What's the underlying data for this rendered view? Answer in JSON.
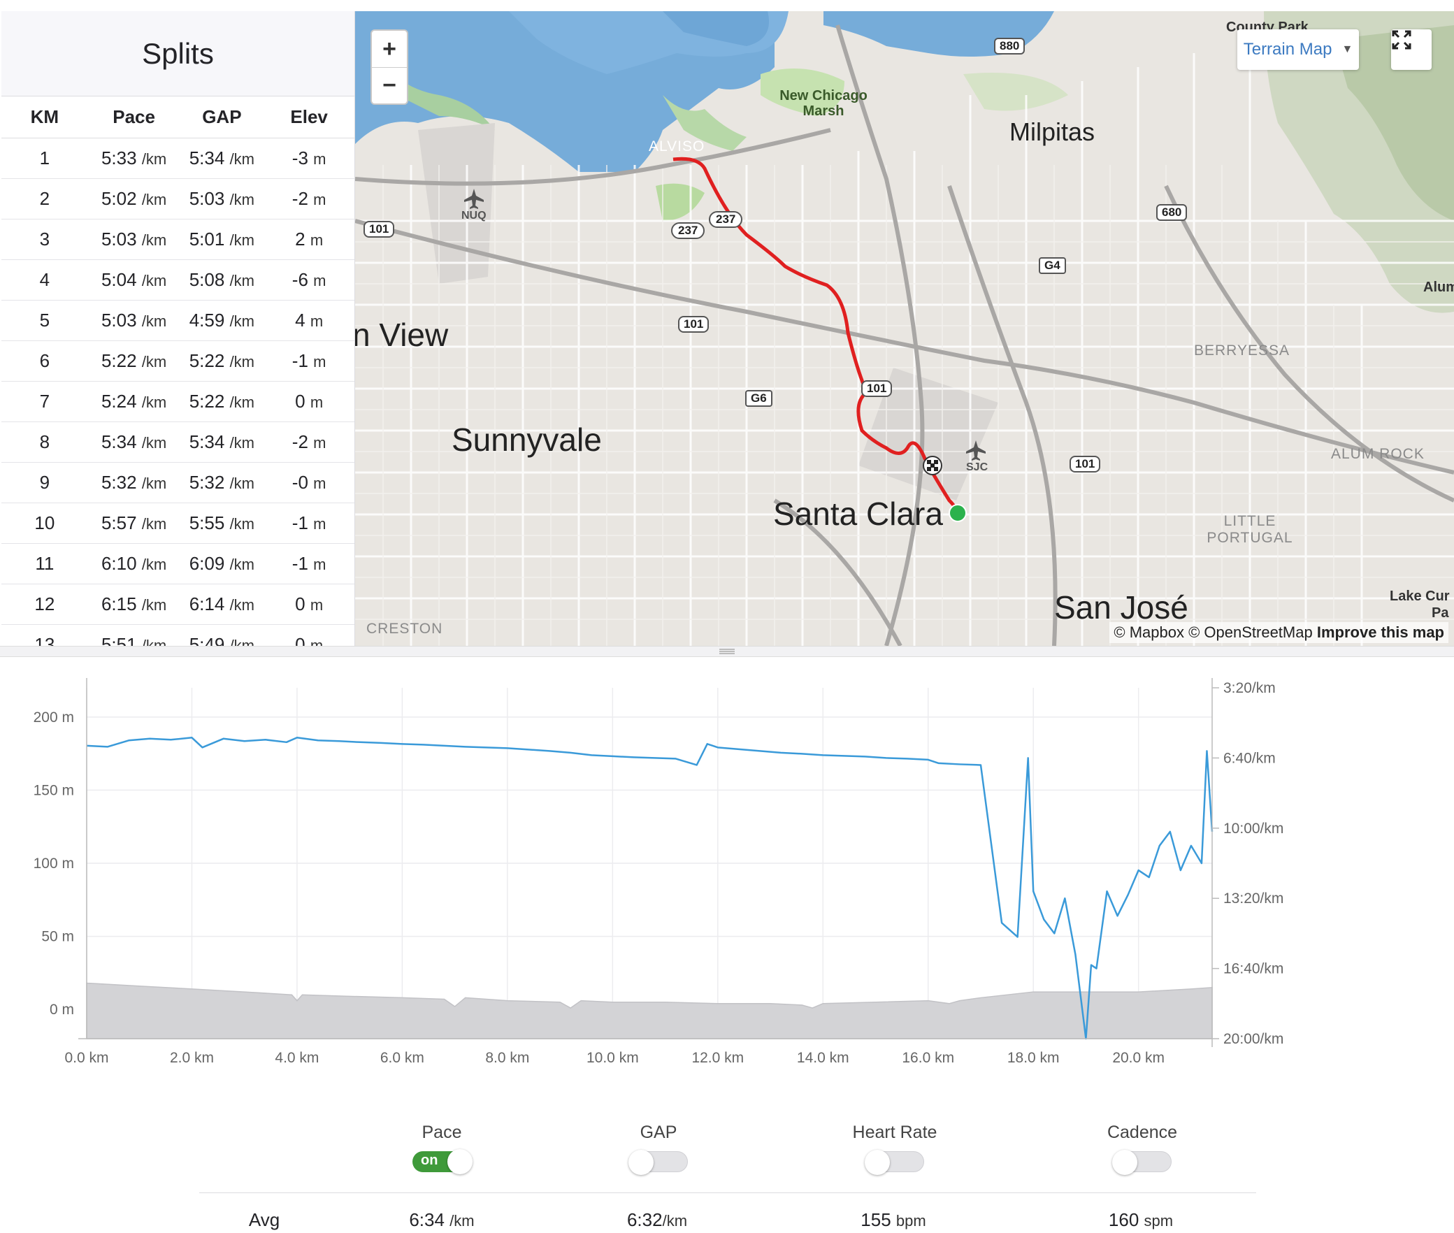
{
  "splits": {
    "title": "Splits",
    "columns": [
      "KM",
      "Pace",
      "GAP",
      "Elev"
    ],
    "rows": [
      {
        "km": "1",
        "pace": "5:33",
        "gap": "5:34",
        "elev": "-3"
      },
      {
        "km": "2",
        "pace": "5:02",
        "gap": "5:03",
        "elev": "-2"
      },
      {
        "km": "3",
        "pace": "5:03",
        "gap": "5:01",
        "elev": "2"
      },
      {
        "km": "4",
        "pace": "5:04",
        "gap": "5:08",
        "elev": "-6"
      },
      {
        "km": "5",
        "pace": "5:03",
        "gap": "4:59",
        "elev": "4"
      },
      {
        "km": "6",
        "pace": "5:22",
        "gap": "5:22",
        "elev": "-1"
      },
      {
        "km": "7",
        "pace": "5:24",
        "gap": "5:22",
        "elev": "0"
      },
      {
        "km": "8",
        "pace": "5:34",
        "gap": "5:34",
        "elev": "-2"
      },
      {
        "km": "9",
        "pace": "5:32",
        "gap": "5:32",
        "elev": "-0"
      },
      {
        "km": "10",
        "pace": "5:57",
        "gap": "5:55",
        "elev": "-1"
      },
      {
        "km": "11",
        "pace": "6:10",
        "gap": "6:09",
        "elev": "-1"
      },
      {
        "km": "12",
        "pace": "6:15",
        "gap": "6:14",
        "elev": "0"
      },
      {
        "km": "13",
        "pace": "5:51",
        "gap": "5:49",
        "elev": "0"
      }
    ],
    "pace_unit": "/km",
    "elev_unit": "m"
  },
  "map": {
    "zoom_in": "+",
    "zoom_out": "−",
    "style_button": "Terrain Map",
    "attribution_prefix": "© Mapbox © OpenStreetMap",
    "attribution_link": "Improve this map",
    "labels": {
      "milpitas": "Milpitas",
      "sunnyvale": "Sunnyvale",
      "santa_clara": "Santa Clara",
      "san_jose": "San José",
      "mountain_view": "n View",
      "alviso": "ALVISO",
      "new_chicago_marsh": "New Chicago Marsh",
      "nuq": "NUQ",
      "sjc": "SJC",
      "berryessa": "BERRYESSA",
      "alum_rock": "ALUM ROCK",
      "little_portugal": "LITTLE PORTUGAL",
      "creston": "CRESTON",
      "county_park": "County Park",
      "alum": "Alum",
      "lake_cur": "Lake Cur",
      "pa": "Pa"
    },
    "shields": [
      "880",
      "237",
      "237",
      "101",
      "101",
      "101",
      "101",
      "680",
      "G4",
      "G6"
    ],
    "route_color": "#e02020",
    "start_color": "#2bb24c"
  },
  "chart_data": {
    "type": "line",
    "x_axis": {
      "label": "",
      "ticks": [
        "0.0 km",
        "2.0 km",
        "4.0 km",
        "6.0 km",
        "8.0 km",
        "10.0 km",
        "12.0 km",
        "14.0 km",
        "16.0 km",
        "18.0 km",
        "20.0 km"
      ],
      "range": [
        0,
        21.4
      ]
    },
    "y_left": {
      "ticks": [
        "200 m",
        "150 m",
        "100 m",
        "50 m",
        "0 m"
      ],
      "range": [
        -20,
        220
      ]
    },
    "y_right": {
      "ticks": [
        "3:20/km",
        "6:40/km",
        "10:00/km",
        "13:20/km",
        "16:40/km",
        "20:00/km"
      ],
      "range_sec_per_km": [
        200,
        1200
      ]
    },
    "series": [
      {
        "name": "Pace",
        "color": "#3a9ad9",
        "x": [
          0.0,
          0.4,
          0.8,
          1.2,
          1.6,
          2.0,
          2.2,
          2.6,
          3.0,
          3.4,
          3.8,
          4.0,
          4.4,
          4.8,
          5.2,
          5.6,
          6.0,
          6.4,
          6.8,
          7.2,
          7.6,
          8.0,
          8.4,
          8.8,
          9.2,
          9.6,
          10.0,
          10.4,
          10.8,
          11.2,
          11.6,
          11.8,
          12.0,
          12.4,
          12.8,
          13.2,
          13.6,
          14.0,
          14.4,
          14.8,
          15.2,
          15.6,
          16.0,
          16.2,
          16.6,
          17.0,
          17.4,
          17.7,
          17.9,
          18.0,
          18.2,
          18.4,
          18.6,
          18.8,
          19.0,
          19.1,
          19.2,
          19.4,
          19.6,
          19.8,
          20.0,
          20.2,
          20.4,
          20.6,
          20.8,
          21.0,
          21.2,
          21.3,
          21.4
        ],
        "y_sec_per_km": [
          365,
          368,
          350,
          345,
          348,
          342,
          370,
          345,
          352,
          348,
          355,
          342,
          350,
          352,
          355,
          357,
          360,
          362,
          365,
          368,
          370,
          372,
          376,
          380,
          385,
          392,
          395,
          398,
          400,
          402,
          420,
          360,
          370,
          375,
          380,
          385,
          388,
          392,
          394,
          396,
          400,
          402,
          405,
          415,
          418,
          420,
          870,
          910,
          400,
          780,
          860,
          900,
          800,
          960,
          1200,
          990,
          1000,
          780,
          850,
          790,
          720,
          740,
          650,
          610,
          720,
          650,
          700,
          380,
          610
        ]
      },
      {
        "name": "Elevation",
        "color": "#d3d3d6",
        "x": [
          0.0,
          1.0,
          2.0,
          3.0,
          3.9,
          4.0,
          4.1,
          5.0,
          6.0,
          6.8,
          7.0,
          7.2,
          8.0,
          9.0,
          9.2,
          9.4,
          10.0,
          11.0,
          12.0,
          13.0,
          13.6,
          13.8,
          14.0,
          15.0,
          16.0,
          16.4,
          16.6,
          17.0,
          18.0,
          19.0,
          20.0,
          21.0,
          21.4
        ],
        "y": [
          18,
          16,
          14,
          12,
          10,
          6,
          10,
          9,
          8,
          7,
          2,
          8,
          6,
          5,
          1,
          6,
          5,
          5,
          4,
          4,
          3,
          1,
          4,
          5,
          6,
          4,
          6,
          8,
          12,
          12,
          12,
          14,
          15
        ]
      }
    ]
  },
  "toggles": [
    {
      "label": "Pace",
      "state": "on",
      "on_text": "on"
    },
    {
      "label": "GAP",
      "state": "off",
      "on_text": ""
    },
    {
      "label": "Heart Rate",
      "state": "off",
      "on_text": ""
    },
    {
      "label": "Cadence",
      "state": "off",
      "on_text": ""
    }
  ],
  "averages": {
    "label": "Avg",
    "pace": {
      "value": "6:34",
      "unit": "/km"
    },
    "gap": {
      "value": "6:32",
      "unit": "/km"
    },
    "heart_rate": {
      "value": "155",
      "unit": "bpm"
    },
    "cadence": {
      "value": "160",
      "unit": "spm"
    }
  }
}
